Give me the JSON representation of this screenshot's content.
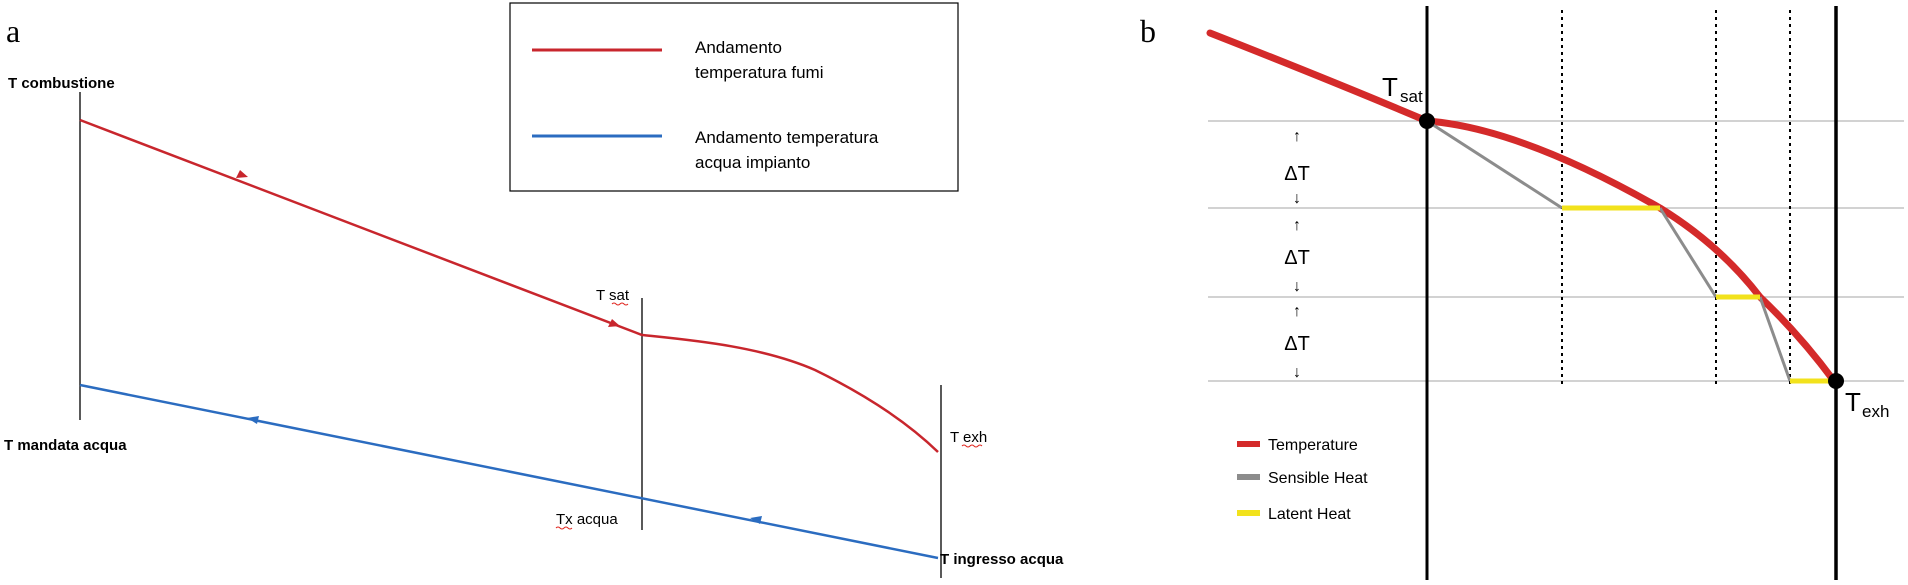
{
  "panel_a": {
    "letter": "a",
    "legend": {
      "flue_line1": "Andamento",
      "flue_line2": "temperatura fumi",
      "water_line1": "Andamento temperatura",
      "water_line2": "acqua impianto"
    },
    "labels": {
      "t_combustion": "T combustione",
      "t_supply": "T mandata acqua",
      "t_sat": "T sat",
      "tx_water": "Tx acqua",
      "t_exh": "T exh",
      "t_water_inlet": "T ingresso acqua"
    },
    "colors": {
      "flue": "#c8262d",
      "water": "#2b6cc0",
      "spellcheck": "#e0261f"
    }
  },
  "panel_b": {
    "letter": "b",
    "labels": {
      "t_sat_main": "T",
      "t_sat_sub": "sat",
      "t_exh_main": "T",
      "t_exh_sub": "exh",
      "delta_t": "ΔT",
      "arrow_up": "↑",
      "arrow_down": "↓"
    },
    "legend": {
      "temperature": "Temperature",
      "sensible": "Sensible Heat",
      "latent": "Latent Heat"
    },
    "colors": {
      "temperature": "#d42a2a",
      "sensible": "#8c8c8c",
      "latent": "#f2e21c",
      "grid": "#b8b8b8"
    }
  }
}
